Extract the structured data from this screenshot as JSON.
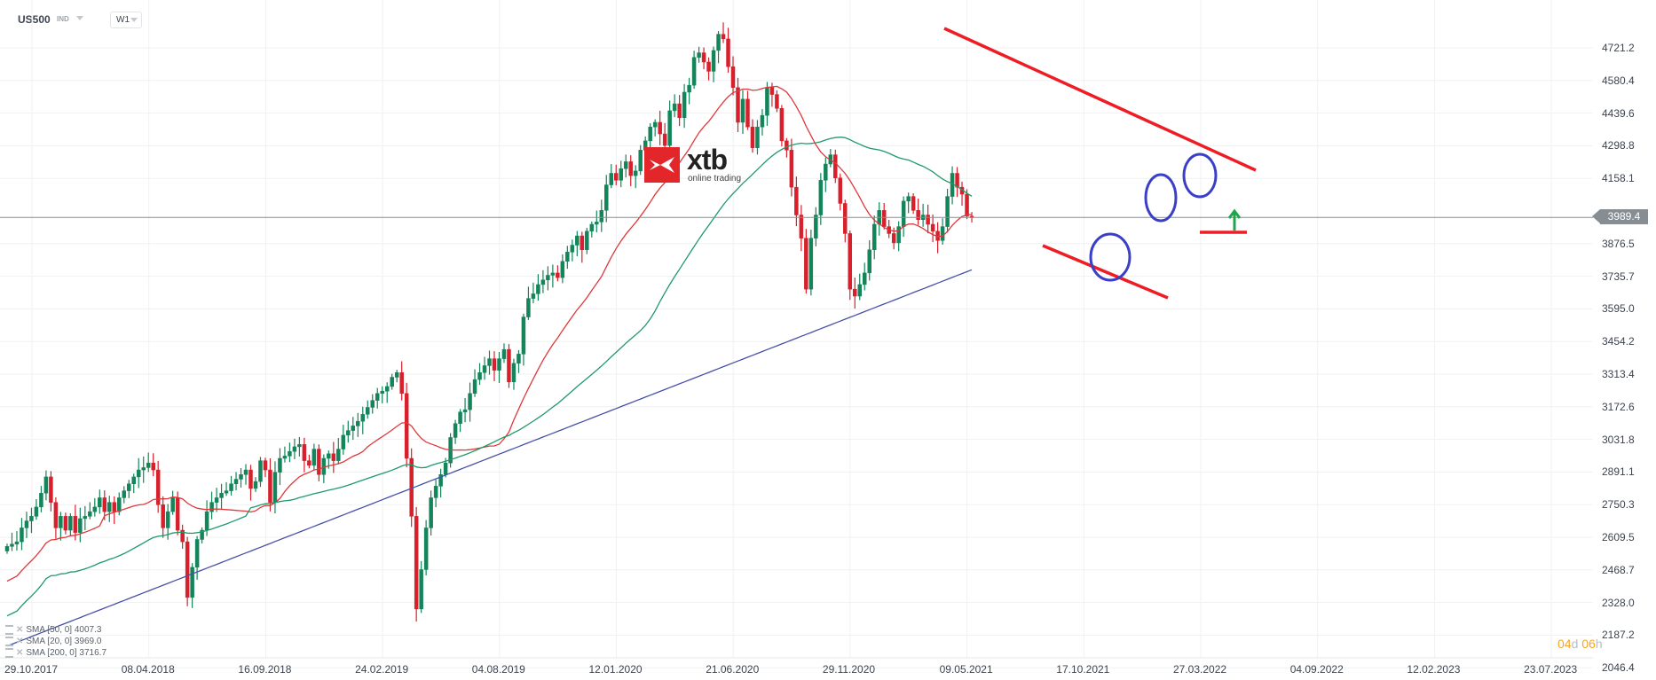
{
  "header": {
    "symbol": "US500",
    "symbol_type": "IND",
    "timeframe": "W1"
  },
  "logo": {
    "brand": "xtb",
    "tagline": "online trading"
  },
  "current_price": "3989.4",
  "countdown": {
    "d_val": "04",
    "d_unit": "d",
    "h_val": "06",
    "h_unit": "h"
  },
  "legend": [
    {
      "label": "SMA [50, 0] 4007.3"
    },
    {
      "label": "SMA [20, 0] 3969.0"
    },
    {
      "label": "SMA [200, 0] 3716.7"
    }
  ],
  "colors": {
    "up": "#14855a",
    "down": "#d7202c",
    "sma20": "#e0383a",
    "sma50": "#1f9a6a",
    "sma200": "#4650a8",
    "trend": "#ee1c25",
    "circle": "#3a3fc7",
    "arrow": "#1fa64a",
    "grid": "#f0f1f3",
    "priceline": "#868e94"
  },
  "chart_data": {
    "type": "candlestick",
    "title": "US500 W1",
    "xlabel": "",
    "ylabel": "",
    "ylim": [
      2046.4,
      4721.2
    ],
    "y_ticks": [
      "4721.2",
      "4580.4",
      "4439.6",
      "4298.8",
      "4158.1",
      "3876.5",
      "3735.7",
      "3595.0",
      "3454.2",
      "3313.4",
      "3172.6",
      "3031.8",
      "2891.1",
      "2750.3",
      "2609.5",
      "2468.7",
      "2328.0",
      "2187.2",
      "2046.4"
    ],
    "x_ticks": [
      "29.10.2017",
      "08.04.2018",
      "16.09.2018",
      "24.02.2019",
      "04.08.2019",
      "12.01.2020",
      "21.06.2020",
      "29.11.2020",
      "09.05.2021",
      "17.10.2021",
      "27.03.2022",
      "04.09.2022",
      "12.02.2023",
      "23.07.2023"
    ],
    "grid": true,
    "last_price": 3989.4,
    "series": [
      {
        "name": "SMA 50",
        "last": 4007.3
      },
      {
        "name": "SMA 20",
        "last": 3969.0
      },
      {
        "name": "SMA 200",
        "last": 3716.7
      }
    ],
    "close_path": [
      2570,
      2580,
      2590,
      2650,
      2680,
      2700,
      2740,
      2800,
      2870,
      2760,
      2650,
      2700,
      2640,
      2700,
      2630,
      2690,
      2700,
      2720,
      2740,
      2780,
      2720,
      2760,
      2720,
      2780,
      2810,
      2840,
      2870,
      2900,
      2910,
      2930,
      2900,
      2750,
      2650,
      2720,
      2780,
      2640,
      2590,
      2350,
      2480,
      2600,
      2640,
      2720,
      2760,
      2780,
      2800,
      2810,
      2840,
      2860,
      2880,
      2900,
      2820,
      2850,
      2940,
      2900,
      2760,
      2890,
      2950,
      2960,
      2980,
      3000,
      3010,
      2940,
      2920,
      2990,
      2880,
      2950,
      2970,
      2940,
      2990,
      3050,
      3070,
      3090,
      3110,
      3140,
      3170,
      3200,
      3230,
      3240,
      3260,
      3300,
      3320,
      3230,
      2950,
      2700,
      2300,
      2470,
      2650,
      2780,
      2830,
      2880,
      2930,
      3040,
      3100,
      3150,
      3160,
      3230,
      3290,
      3320,
      3350,
      3380,
      3330,
      3380,
      3420,
      3280,
      3360,
      3400,
      3560,
      3640,
      3660,
      3700,
      3720,
      3740,
      3750,
      3730,
      3800,
      3840,
      3870,
      3910,
      3850,
      3930,
      3960,
      3970,
      4020,
      4130,
      4180,
      4150,
      4200,
      4230,
      4170,
      4190,
      4280,
      4320,
      4380,
      4400,
      4350,
      4300,
      4450,
      4480,
      4420,
      4530,
      4560,
      4680,
      4700,
      4660,
      4620,
      4710,
      4780,
      4760,
      4640,
      4550,
      4400,
      4500,
      4380,
      4290,
      4380,
      4430,
      4550,
      4520,
      4460,
      4320,
      4280,
      4120,
      4000,
      3900,
      3680,
      3900,
      4000,
      4150,
      4220,
      4260,
      4160,
      4050,
      3920,
      3680,
      3650,
      3700,
      3750,
      3850,
      3960,
      4020,
      3950,
      3920,
      3880,
      3950,
      4060,
      4080,
      4020,
      3980,
      4000,
      3960,
      3930,
      3890,
      3950,
      4080,
      4180,
      4120,
      4090,
      3995,
      3989
    ]
  },
  "annotations": {
    "resistance_line": [
      [
        1064,
        32
      ],
      [
        1415,
        192
      ]
    ],
    "support_line": [
      [
        1175,
        277
      ],
      [
        1316,
        336
      ]
    ],
    "horizontal_level": [
      [
        1352,
        262
      ],
      [
        1405,
        262
      ]
    ],
    "circles": [
      [
        1251,
        290,
        22,
        26
      ],
      [
        1308,
        223,
        17,
        26
      ],
      [
        1352,
        198,
        18,
        24
      ]
    ],
    "up_arrow": [
      1391,
      260,
      1391,
      238
    ]
  }
}
